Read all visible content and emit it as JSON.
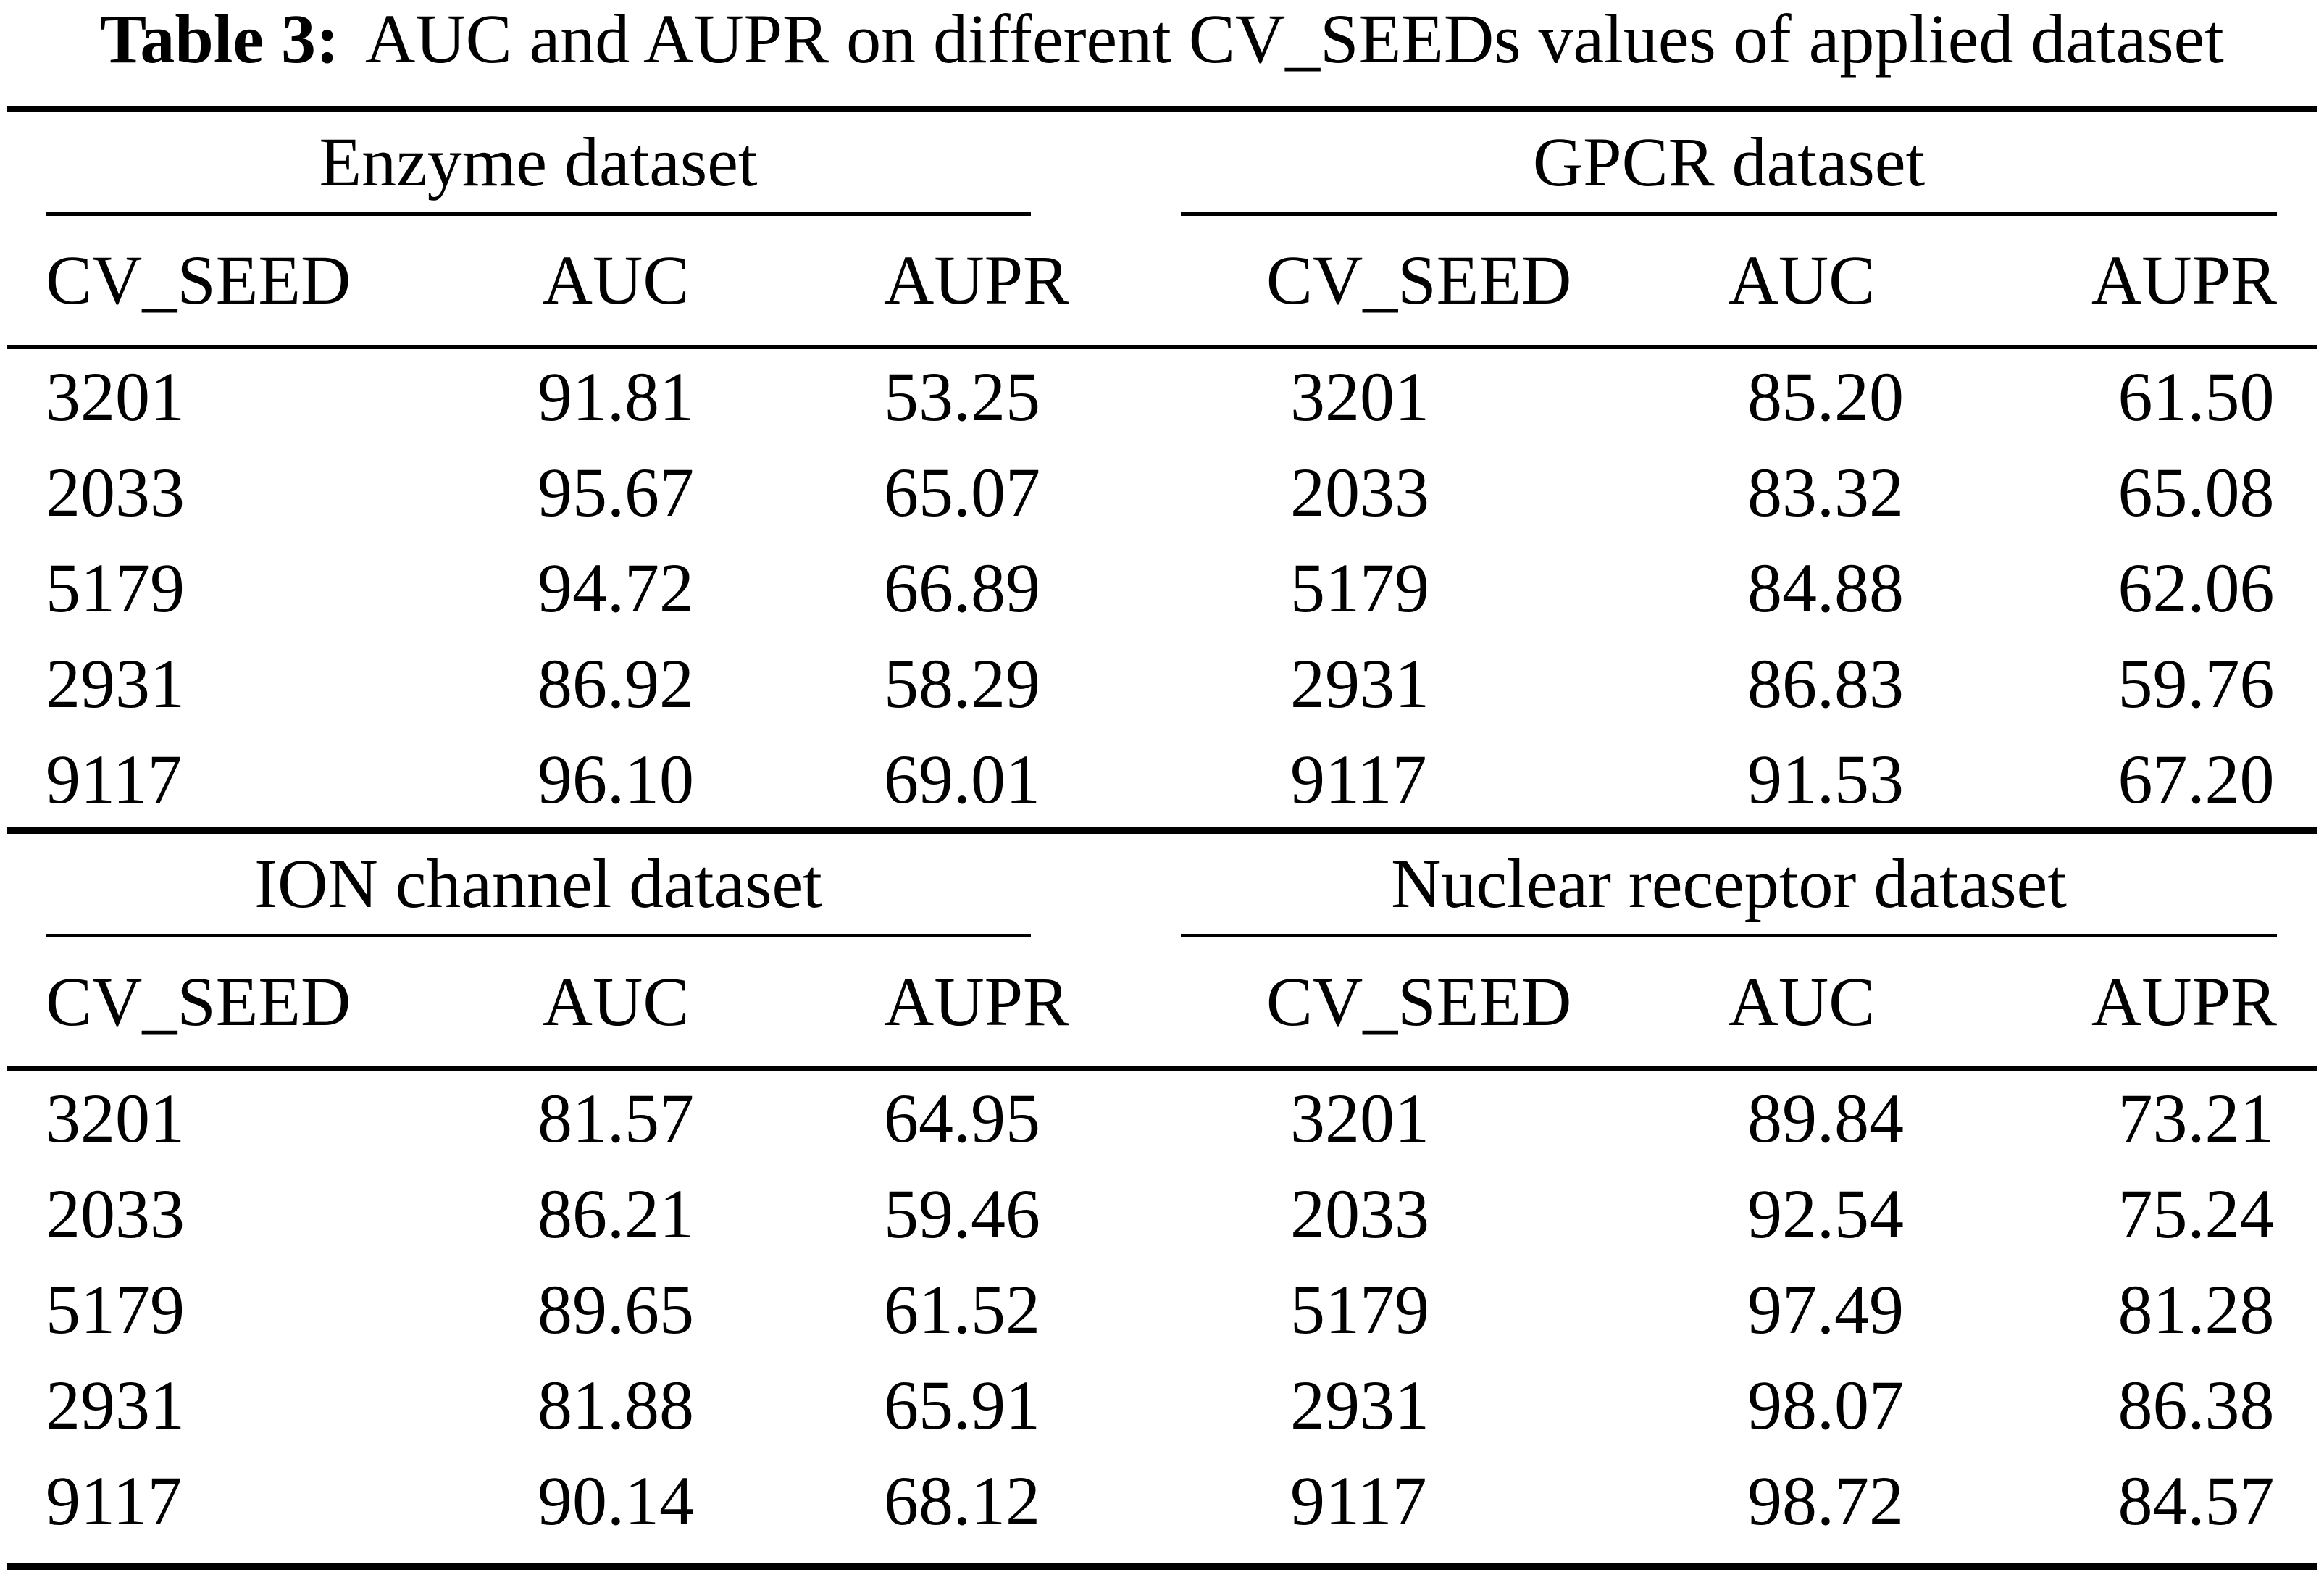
{
  "title": {
    "prefix": "Table 3:",
    "text": "AUC and AUPR on different CV_SEEDs values of applied dataset"
  },
  "columns": [
    "CV_SEED",
    "AUC",
    "AUPR"
  ],
  "sections": [
    {
      "panels": [
        {
          "name": "Enzyme dataset",
          "rows": [
            [
              "3201",
              "91.81",
              "53.25"
            ],
            [
              "2033",
              "95.67",
              "65.07"
            ],
            [
              "5179",
              "94.72",
              "66.89"
            ],
            [
              "2931",
              "86.92",
              "58.29"
            ],
            [
              "9117",
              "96.10",
              "69.01"
            ]
          ]
        },
        {
          "name": "GPCR dataset",
          "rows": [
            [
              "3201",
              "85.20",
              "61.50"
            ],
            [
              "2033",
              "83.32",
              "65.08"
            ],
            [
              "5179",
              "84.88",
              "62.06"
            ],
            [
              "2931",
              "86.83",
              "59.76"
            ],
            [
              "9117",
              "91.53",
              "67.20"
            ]
          ]
        }
      ]
    },
    {
      "panels": [
        {
          "name": "ION channel dataset",
          "rows": [
            [
              "3201",
              "81.57",
              "64.95"
            ],
            [
              "2033",
              "86.21",
              "59.46"
            ],
            [
              "5179",
              "89.65",
              "61.52"
            ],
            [
              "2931",
              "81.88",
              "65.91"
            ],
            [
              "9117",
              "90.14",
              "68.12"
            ]
          ]
        },
        {
          "name": "Nuclear receptor dataset",
          "rows": [
            [
              "3201",
              "89.84",
              "73.21"
            ],
            [
              "2033",
              "92.54",
              "75.24"
            ],
            [
              "5179",
              "97.49",
              "81.28"
            ],
            [
              "2931",
              "98.07",
              "86.38"
            ],
            [
              "9117",
              "98.72",
              "84.57"
            ]
          ]
        }
      ]
    }
  ],
  "colors": {
    "text": "#000000",
    "background": "#ffffff",
    "rule": "#000000"
  }
}
